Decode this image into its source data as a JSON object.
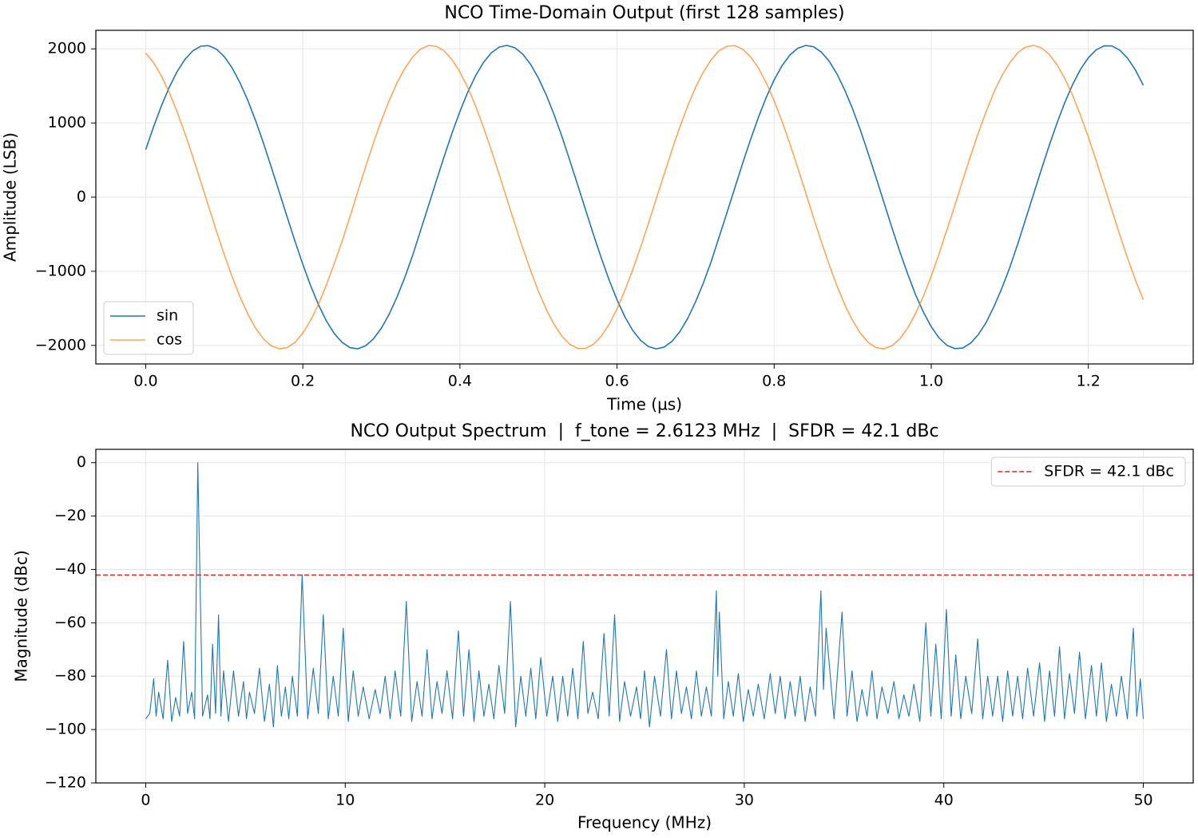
{
  "chart_data": [
    {
      "type": "line",
      "title": "NCO Time-Domain Output (first 128 samples)",
      "xlabel": "Time (µs)",
      "ylabel": "Amplitude (LSB)",
      "x": [
        0,
        0.01,
        0.02,
        0.03,
        0.04,
        0.05,
        0.06,
        0.07,
        0.08,
        0.09,
        0.1,
        0.11,
        0.12,
        0.13,
        0.14,
        0.15,
        0.16,
        0.17,
        0.18,
        0.19,
        0.2,
        0.21,
        0.22,
        0.23,
        0.24,
        0.25,
        0.26,
        0.27,
        0.28,
        0.29,
        0.3,
        0.31,
        0.32,
        0.33,
        0.34,
        0.35,
        0.36,
        0.37,
        0.38,
        0.39,
        0.4,
        0.41,
        0.42,
        0.43,
        0.44,
        0.45,
        0.46,
        0.47,
        0.48,
        0.49,
        0.5,
        0.51,
        0.52,
        0.53,
        0.54,
        0.55,
        0.56,
        0.57,
        0.58,
        0.59,
        0.6,
        0.61,
        0.62,
        0.63,
        0.64,
        0.65,
        0.66,
        0.67,
        0.68,
        0.69,
        0.7,
        0.71,
        0.72,
        0.73,
        0.74,
        0.75,
        0.76,
        0.77,
        0.78,
        0.79,
        0.8,
        0.81,
        0.82,
        0.83,
        0.84,
        0.85,
        0.86,
        0.87,
        0.88,
        0.89,
        0.9,
        0.91,
        0.92,
        0.93,
        0.94,
        0.95,
        0.96,
        0.97,
        0.98,
        0.99,
        1.0,
        1.01,
        1.02,
        1.03,
        1.04,
        1.05,
        1.06,
        1.07,
        1.08,
        1.09,
        1.1,
        1.11,
        1.12,
        1.13,
        1.14,
        1.15,
        1.16,
        1.17,
        1.18,
        1.19,
        1.2,
        1.21,
        1.22,
        1.23,
        1.24,
        1.25,
        1.26,
        1.27
      ],
      "series": [
        {
          "name": "sin",
          "color": "#1f77b4",
          "alpha": 1,
          "values": [
            640,
            949,
            1232,
            1483,
            1694,
            1859,
            1974,
            2036,
            2043,
            1996,
            1895,
            1743,
            1544,
            1304,
            1029,
            726,
            398,
            68,
            -267,
            -595,
            -907,
            -1197,
            -1453,
            -1670,
            -1840,
            -1959,
            -2030,
            -2046,
            -2005,
            -1911,
            -1767,
            -1578,
            -1345,
            -1079,
            -779,
            -446,
            -115,
            220,
            550,
            865,
            1156,
            1417,
            1639,
            1817,
            1947,
            2024,
            2047,
            2014,
            1928,
            1791,
            1604,
            1376,
            1109,
            814,
            490,
            162,
            -173,
            -505,
            -822,
            -1119,
            -1385,
            -1615,
            -1798,
            -1932,
            -2016,
            -2047,
            -2023,
            -1945,
            -1814,
            -1636,
            -1412,
            -1156,
            -865,
            -536,
            -209,
            126,
            459,
            778,
            1077,
            1347,
            1581,
            1772,
            1916,
            2008,
            2046,
            2029,
            1957,
            1835,
            1661,
            1442,
            1187,
            899,
            581,
            256,
            -79,
            -413,
            -735,
            -1035,
            -1315,
            -1550,
            -1749,
            -1899,
            -1999,
            -2043,
            -2035,
            -1971,
            -1853,
            -1689,
            -1473,
            -1227,
            -949,
            -635,
            -303,
            32,
            366,
            690,
            996,
            1275,
            1519,
            1723,
            1880,
            1987,
            2041,
            2039,
            1983,
            1874,
            1714,
            1508
          ]
        },
        {
          "name": "cos",
          "color": "#ff7f0e",
          "alpha": 0.7,
          "values": [
            1944,
            1814,
            1634,
            1411,
            1149,
            857,
            542,
            212,
            -123,
            -456,
            -775,
            -1074,
            -1344,
            -1578,
            -1770,
            -1914,
            -2008,
            -2046,
            -2030,
            -1959,
            -1835,
            -1661,
            -1442,
            -1184,
            -896,
            -593,
            -264,
            76,
            411,
            733,
            1033,
            1304,
            1543,
            1740,
            1893,
            1998,
            2044,
            2035,
            1972,
            1855,
            1689,
            1478,
            1227,
            942,
            633,
            306,
            -29,
            -364,
            -687,
            -992,
            -1271,
            -1515,
            -1721,
            -1878,
            -1987,
            -2041,
            -2040,
            -1984,
            -1875,
            -1714,
            -1507,
            -1258,
            -979,
            -676,
            -354,
            -18,
            310,
            638,
            948,
            1230,
            1482,
            1690,
            1855,
            1976,
            2036,
            2043,
            1995,
            1893,
            1741,
            1541,
            1300,
            1024,
            722,
            399,
            65,
            -270,
            -599,
            -908,
            -1197,
            -1453,
            -1667,
            -1839,
            -1963,
            -2031,
            -2046,
            -2005,
            -1911,
            -1766,
            -1569,
            -1337,
            -1064,
            -763,
            -439,
            -112,
            223,
            553,
            869,
            1157,
            1422,
            1639,
            1814,
            1946,
            2024,
            2047,
            2014,
            1927,
            1788,
            1602,
            1372,
            1105,
            810,
            491,
            159,
            -176,
            -507,
            -824,
            -1119,
            -1385
          ]
        }
      ],
      "xlim": [
        -0.0635,
        1.3335
      ],
      "ylim": [
        -2250,
        2250
      ],
      "xticks": [
        {
          "value": 0,
          "label": "0.0"
        },
        {
          "value": 0.2,
          "label": "0.2"
        },
        {
          "value": 0.4,
          "label": "0.4"
        },
        {
          "value": 0.6,
          "label": "0.6"
        },
        {
          "value": 0.8,
          "label": "0.8"
        },
        {
          "value": 1.0,
          "label": "1.0"
        },
        {
          "value": 1.2,
          "label": "1.2"
        }
      ],
      "yticks": [
        {
          "value": -2000,
          "label": "−2000"
        },
        {
          "value": -1000,
          "label": "−1000"
        },
        0,
        1000,
        2000
      ],
      "grid": true,
      "legend": "lower left"
    },
    {
      "type": "line",
      "title": "NCO Output Spectrum  |  f_tone = 2.6123 MHz  |  SFDR = 42.1 dBc",
      "xlabel": "Frequency (MHz)",
      "ylabel": "Magnitude (dBc)",
      "x": [
        0,
        0.2,
        0.4,
        0.52,
        0.65,
        0.87,
        1.1,
        1.3,
        1.5,
        1.7,
        1.9,
        2.1,
        2.3,
        2.45,
        2.61,
        2.85,
        3.1,
        3.22,
        3.35,
        3.5,
        3.65,
        3.77,
        3.9,
        4.15,
        4.4,
        4.65,
        4.9,
        5.05,
        5.2,
        5.45,
        5.7,
        5.95,
        6.2,
        6.4,
        6.6,
        6.8,
        7.0,
        7.17,
        7.35,
        7.6,
        7.84,
        8.12,
        8.4,
        8.65,
        8.9,
        9.15,
        9.4,
        9.65,
        9.9,
        10.15,
        10.4,
        10.65,
        10.9,
        11.2,
        11.5,
        11.75,
        12.0,
        12.25,
        12.5,
        12.78,
        13.06,
        13.33,
        13.6,
        13.85,
        14.1,
        14.35,
        14.6,
        14.85,
        15.1,
        15.38,
        15.67,
        15.93,
        16.2,
        16.45,
        16.7,
        16.95,
        17.2,
        17.45,
        17.7,
        17.99,
        18.28,
        18.54,
        18.8,
        19.05,
        19.3,
        19.55,
        19.8,
        20.1,
        20.4,
        20.65,
        20.9,
        21.15,
        21.4,
        21.66,
        21.93,
        22.16,
        22.4,
        22.68,
        22.97,
        23.23,
        23.5,
        23.75,
        24.0,
        24.3,
        24.6,
        24.8,
        25.0,
        25.25,
        25.5,
        25.8,
        26.1,
        26.35,
        26.6,
        26.85,
        27.1,
        27.35,
        27.6,
        27.85,
        28.1,
        28.35,
        28.6,
        28.67,
        28.75,
        28.97,
        29.2,
        29.45,
        29.7,
        29.95,
        30.2,
        30.45,
        30.7,
        31.0,
        31.3,
        31.55,
        31.8,
        32.05,
        32.3,
        32.55,
        32.8,
        33.05,
        33.3,
        33.57,
        33.84,
        33.97,
        34.1,
        34.5,
        34.9,
        35.15,
        35.4,
        35.65,
        35.9,
        36.15,
        36.4,
        36.65,
        36.9,
        37.2,
        37.5,
        37.75,
        38.0,
        38.25,
        38.5,
        38.8,
        39.1,
        39.35,
        39.6,
        39.87,
        40.13,
        40.37,
        40.6,
        40.85,
        41.1,
        41.4,
        41.7,
        41.95,
        42.2,
        42.45,
        42.7,
        42.95,
        43.2,
        43.45,
        43.7,
        43.95,
        44.2,
        44.5,
        44.8,
        45.05,
        45.3,
        45.55,
        45.8,
        46.05,
        46.3,
        46.55,
        46.8,
        47.1,
        47.4,
        47.65,
        47.9,
        48.15,
        48.4,
        48.65,
        48.9,
        49.2,
        49.5,
        49.67,
        49.85,
        50.0
      ],
      "series": [
        {
          "color": "#1f77b4",
          "alpha": 1,
          "values": [
            -96,
            -94,
            -81,
            -95,
            -86,
            -96,
            -74,
            -97,
            -88,
            -95,
            -67,
            -94,
            -86,
            -96,
            0,
            -95,
            -87,
            -96,
            -68,
            -94,
            -57,
            -95,
            -78,
            -97,
            -78,
            -95,
            -82,
            -96,
            -86,
            -94,
            -77,
            -97,
            -83,
            -99,
            -76,
            -95,
            -84,
            -96,
            -80,
            -95,
            -42,
            -96,
            -77,
            -94,
            -57,
            -96,
            -80,
            -95,
            -62,
            -97,
            -78,
            -95,
            -84,
            -96,
            -85,
            -94,
            -80,
            -96,
            -78,
            -95,
            -52,
            -97,
            -82,
            -95,
            -70,
            -96,
            -82,
            -94,
            -78,
            -96,
            -63,
            -95,
            -70,
            -97,
            -78,
            -95,
            -83,
            -96,
            -76,
            -94,
            -52,
            -99,
            -80,
            -95,
            -77,
            -96,
            -73,
            -95,
            -80,
            -97,
            -80,
            -95,
            -77,
            -96,
            -67,
            -94,
            -86,
            -96,
            -64,
            -95,
            -57,
            -97,
            -82,
            -95,
            -84,
            -96,
            -78,
            -99,
            -80,
            -95,
            -70,
            -96,
            -78,
            -94,
            -84,
            -96,
            -78,
            -95,
            -84,
            -95,
            -48,
            -80,
            -56,
            -96,
            -82,
            -95,
            -79,
            -97,
            -85,
            -95,
            -83,
            -96,
            -79,
            -94,
            -80,
            -96,
            -82,
            -95,
            -80,
            -97,
            -84,
            -95,
            -48,
            -85,
            -62,
            -96,
            -56,
            -95,
            -78,
            -97,
            -85,
            -95,
            -78,
            -96,
            -84,
            -94,
            -82,
            -96,
            -87,
            -95,
            -83,
            -97,
            -60,
            -95,
            -68,
            -96,
            -55,
            -95,
            -72,
            -96,
            -80,
            -94,
            -66,
            -96,
            -80,
            -95,
            -80,
            -97,
            -78,
            -95,
            -80,
            -96,
            -77,
            -95,
            -75,
            -97,
            -78,
            -95,
            -69,
            -96,
            -79,
            -94,
            -71,
            -96,
            -76,
            -95,
            -75,
            -97,
            -83,
            -95,
            -80,
            -96,
            -62,
            -95,
            -81,
            -96
          ]
        }
      ],
      "reference_line": {
        "name": "SFDR = 42.1 dBc",
        "value": -42.1,
        "color": "#d62728",
        "dash": "6 3"
      },
      "xlim": [
        -2.5,
        52.5
      ],
      "ylim": [
        -120,
        5
      ],
      "xticks": [
        0,
        10,
        20,
        30,
        40,
        50
      ],
      "yticks": [
        {
          "value": -120,
          "label": "−120"
        },
        {
          "value": -100,
          "label": "−100"
        },
        {
          "value": -80,
          "label": "−80"
        },
        {
          "value": -60,
          "label": "−60"
        },
        {
          "value": -40,
          "label": "−40"
        },
        {
          "value": -20,
          "label": "−20"
        },
        0
      ],
      "grid": true,
      "legend": "upper right"
    }
  ]
}
